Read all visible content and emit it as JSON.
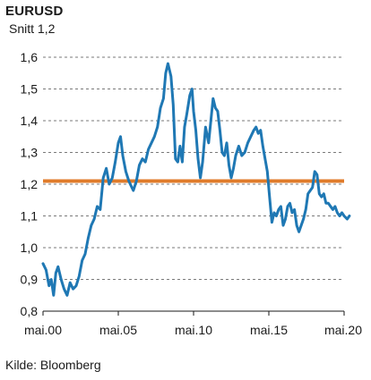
{
  "chart_data": {
    "type": "line",
    "title": "EURUSD",
    "subtitle": "Snitt 1,2",
    "source": "Kilde: Bloomberg",
    "xlabel": "",
    "ylabel": "",
    "ylim": [
      0.8,
      1.6
    ],
    "xlim": [
      2000.0,
      2020.0
    ],
    "y_ticks": [
      0.8,
      0.9,
      1.0,
      1.1,
      1.2,
      1.3,
      1.4,
      1.5,
      1.6
    ],
    "y_tick_labels": [
      "0,8",
      "0,9",
      "1,0",
      "1,1",
      "1,2",
      "1,3",
      "1,4",
      "1,5",
      "1,6"
    ],
    "x_ticks": [
      2000,
      2005,
      2010,
      2015,
      2020
    ],
    "x_tick_labels": [
      "mai.00",
      "mai.05",
      "mai.10",
      "mai.15",
      "mai.20"
    ],
    "grid": "horizontal dashed",
    "reference_line": {
      "value": 1.21,
      "color": "#e07b2a"
    },
    "series": [
      {
        "color": "#1f78b4",
        "points": [
          [
            2000.0,
            0.95
          ],
          [
            2000.2,
            0.93
          ],
          [
            2000.4,
            0.88
          ],
          [
            2000.55,
            0.9
          ],
          [
            2000.7,
            0.85
          ],
          [
            2000.85,
            0.92
          ],
          [
            2001.0,
            0.94
          ],
          [
            2001.2,
            0.9
          ],
          [
            2001.4,
            0.87
          ],
          [
            2001.6,
            0.85
          ],
          [
            2001.8,
            0.89
          ],
          [
            2002.0,
            0.87
          ],
          [
            2002.2,
            0.88
          ],
          [
            2002.4,
            0.91
          ],
          [
            2002.6,
            0.96
          ],
          [
            2002.8,
            0.98
          ],
          [
            2003.0,
            1.03
          ],
          [
            2003.2,
            1.07
          ],
          [
            2003.4,
            1.09
          ],
          [
            2003.6,
            1.13
          ],
          [
            2003.8,
            1.12
          ],
          [
            2004.0,
            1.22
          ],
          [
            2004.2,
            1.25
          ],
          [
            2004.4,
            1.2
          ],
          [
            2004.6,
            1.22
          ],
          [
            2004.8,
            1.27
          ],
          [
            2005.0,
            1.33
          ],
          [
            2005.15,
            1.35
          ],
          [
            2005.3,
            1.29
          ],
          [
            2005.5,
            1.24
          ],
          [
            2005.7,
            1.21
          ],
          [
            2005.9,
            1.19
          ],
          [
            2006.0,
            1.18
          ],
          [
            2006.2,
            1.21
          ],
          [
            2006.4,
            1.26
          ],
          [
            2006.6,
            1.28
          ],
          [
            2006.8,
            1.27
          ],
          [
            2007.0,
            1.31
          ],
          [
            2007.2,
            1.33
          ],
          [
            2007.4,
            1.35
          ],
          [
            2007.6,
            1.38
          ],
          [
            2007.8,
            1.44
          ],
          [
            2008.0,
            1.47
          ],
          [
            2008.15,
            1.55
          ],
          [
            2008.3,
            1.58
          ],
          [
            2008.5,
            1.54
          ],
          [
            2008.65,
            1.45
          ],
          [
            2008.8,
            1.28
          ],
          [
            2008.95,
            1.27
          ],
          [
            2009.1,
            1.32
          ],
          [
            2009.25,
            1.27
          ],
          [
            2009.4,
            1.38
          ],
          [
            2009.55,
            1.42
          ],
          [
            2009.75,
            1.48
          ],
          [
            2009.9,
            1.5
          ],
          [
            2010.0,
            1.43
          ],
          [
            2010.15,
            1.37
          ],
          [
            2010.3,
            1.28
          ],
          [
            2010.45,
            1.22
          ],
          [
            2010.6,
            1.27
          ],
          [
            2010.8,
            1.38
          ],
          [
            2011.0,
            1.33
          ],
          [
            2011.15,
            1.4
          ],
          [
            2011.3,
            1.47
          ],
          [
            2011.45,
            1.44
          ],
          [
            2011.6,
            1.43
          ],
          [
            2011.75,
            1.37
          ],
          [
            2011.9,
            1.3
          ],
          [
            2012.05,
            1.29
          ],
          [
            2012.2,
            1.33
          ],
          [
            2012.35,
            1.26
          ],
          [
            2012.5,
            1.22
          ],
          [
            2012.65,
            1.25
          ],
          [
            2012.8,
            1.29
          ],
          [
            2013.0,
            1.32
          ],
          [
            2013.2,
            1.29
          ],
          [
            2013.4,
            1.3
          ],
          [
            2013.6,
            1.33
          ],
          [
            2013.8,
            1.35
          ],
          [
            2014.0,
            1.37
          ],
          [
            2014.15,
            1.38
          ],
          [
            2014.3,
            1.36
          ],
          [
            2014.45,
            1.37
          ],
          [
            2014.6,
            1.32
          ],
          [
            2014.75,
            1.28
          ],
          [
            2014.9,
            1.24
          ],
          [
            2015.05,
            1.16
          ],
          [
            2015.2,
            1.08
          ],
          [
            2015.35,
            1.11
          ],
          [
            2015.5,
            1.1
          ],
          [
            2015.65,
            1.12
          ],
          [
            2015.8,
            1.13
          ],
          [
            2015.95,
            1.07
          ],
          [
            2016.1,
            1.09
          ],
          [
            2016.25,
            1.13
          ],
          [
            2016.4,
            1.14
          ],
          [
            2016.55,
            1.11
          ],
          [
            2016.7,
            1.12
          ],
          [
            2016.85,
            1.07
          ],
          [
            2017.0,
            1.05
          ],
          [
            2017.15,
            1.07
          ],
          [
            2017.3,
            1.09
          ],
          [
            2017.45,
            1.12
          ],
          [
            2017.6,
            1.17
          ],
          [
            2017.75,
            1.18
          ],
          [
            2017.9,
            1.19
          ],
          [
            2018.05,
            1.24
          ],
          [
            2018.2,
            1.23
          ],
          [
            2018.35,
            1.17
          ],
          [
            2018.5,
            1.16
          ],
          [
            2018.65,
            1.17
          ],
          [
            2018.8,
            1.14
          ],
          [
            2018.95,
            1.14
          ],
          [
            2019.1,
            1.13
          ],
          [
            2019.25,
            1.12
          ],
          [
            2019.4,
            1.13
          ],
          [
            2019.55,
            1.11
          ],
          [
            2019.7,
            1.1
          ],
          [
            2019.85,
            1.11
          ],
          [
            2020.0,
            1.1
          ],
          [
            2020.2,
            1.09
          ],
          [
            2020.35,
            1.1
          ]
        ]
      }
    ]
  }
}
